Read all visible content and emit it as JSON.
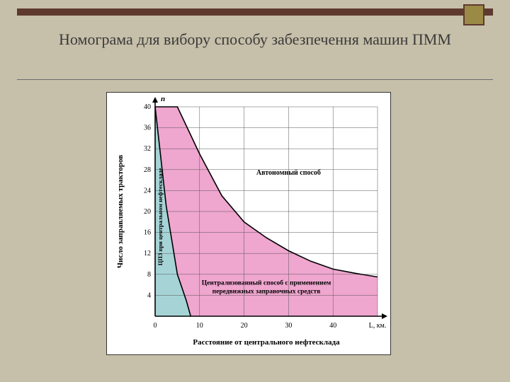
{
  "title": "Номограма для вибору способу забезпечення машин ПММ",
  "chart": {
    "type": "area",
    "y_axis_title": "n",
    "y_label": "Число заправляемых тракторов",
    "x_label": "Расстояние от центрального нефтесклада",
    "y_ticks": [
      4,
      8,
      12,
      16,
      20,
      24,
      28,
      32,
      36,
      40
    ],
    "x_ticks": [
      "0",
      "10",
      "20",
      "30",
      "40",
      "L, км."
    ],
    "xlim": [
      0,
      50
    ],
    "ylim": [
      0,
      40
    ],
    "curve_upper": [
      {
        "x": 0,
        "y": 40
      },
      {
        "x": 5,
        "y": 40
      },
      {
        "x": 10,
        "y": 31
      },
      {
        "x": 15,
        "y": 23
      },
      {
        "x": 20,
        "y": 18
      },
      {
        "x": 25,
        "y": 15
      },
      {
        "x": 30,
        "y": 12.5
      },
      {
        "x": 35,
        "y": 10.5
      },
      {
        "x": 40,
        "y": 9
      },
      {
        "x": 45,
        "y": 8.2
      },
      {
        "x": 50,
        "y": 7.5
      }
    ],
    "curve_lower": [
      {
        "x": 0,
        "y": 40
      },
      {
        "x": 2.5,
        "y": 21
      },
      {
        "x": 5,
        "y": 8
      },
      {
        "x": 7,
        "y": 3
      },
      {
        "x": 8,
        "y": 0
      }
    ],
    "region1_label": "ЦПЗ при центральном нефтескладе",
    "region2_label_line1": "Централизованный способ с применением",
    "region2_label_line2": "передвижных заправочных средств",
    "region3_label": "Автономный способ",
    "colors": {
      "background": "#c6bfa9",
      "figure_bg": "#ffffff",
      "region1": "#a6d4d6",
      "region2": "#efa6cf",
      "region3": "#ffffff",
      "axis": "#000000",
      "grid": "#555555",
      "top_bar": "#5e3a2e",
      "accent": "#9a8a46",
      "text": "#000000"
    },
    "fonts": {
      "title_size": 22,
      "axis_label_size": 11,
      "tick_size": 10,
      "region_label_size": 10
    },
    "line_width": 1.6
  }
}
